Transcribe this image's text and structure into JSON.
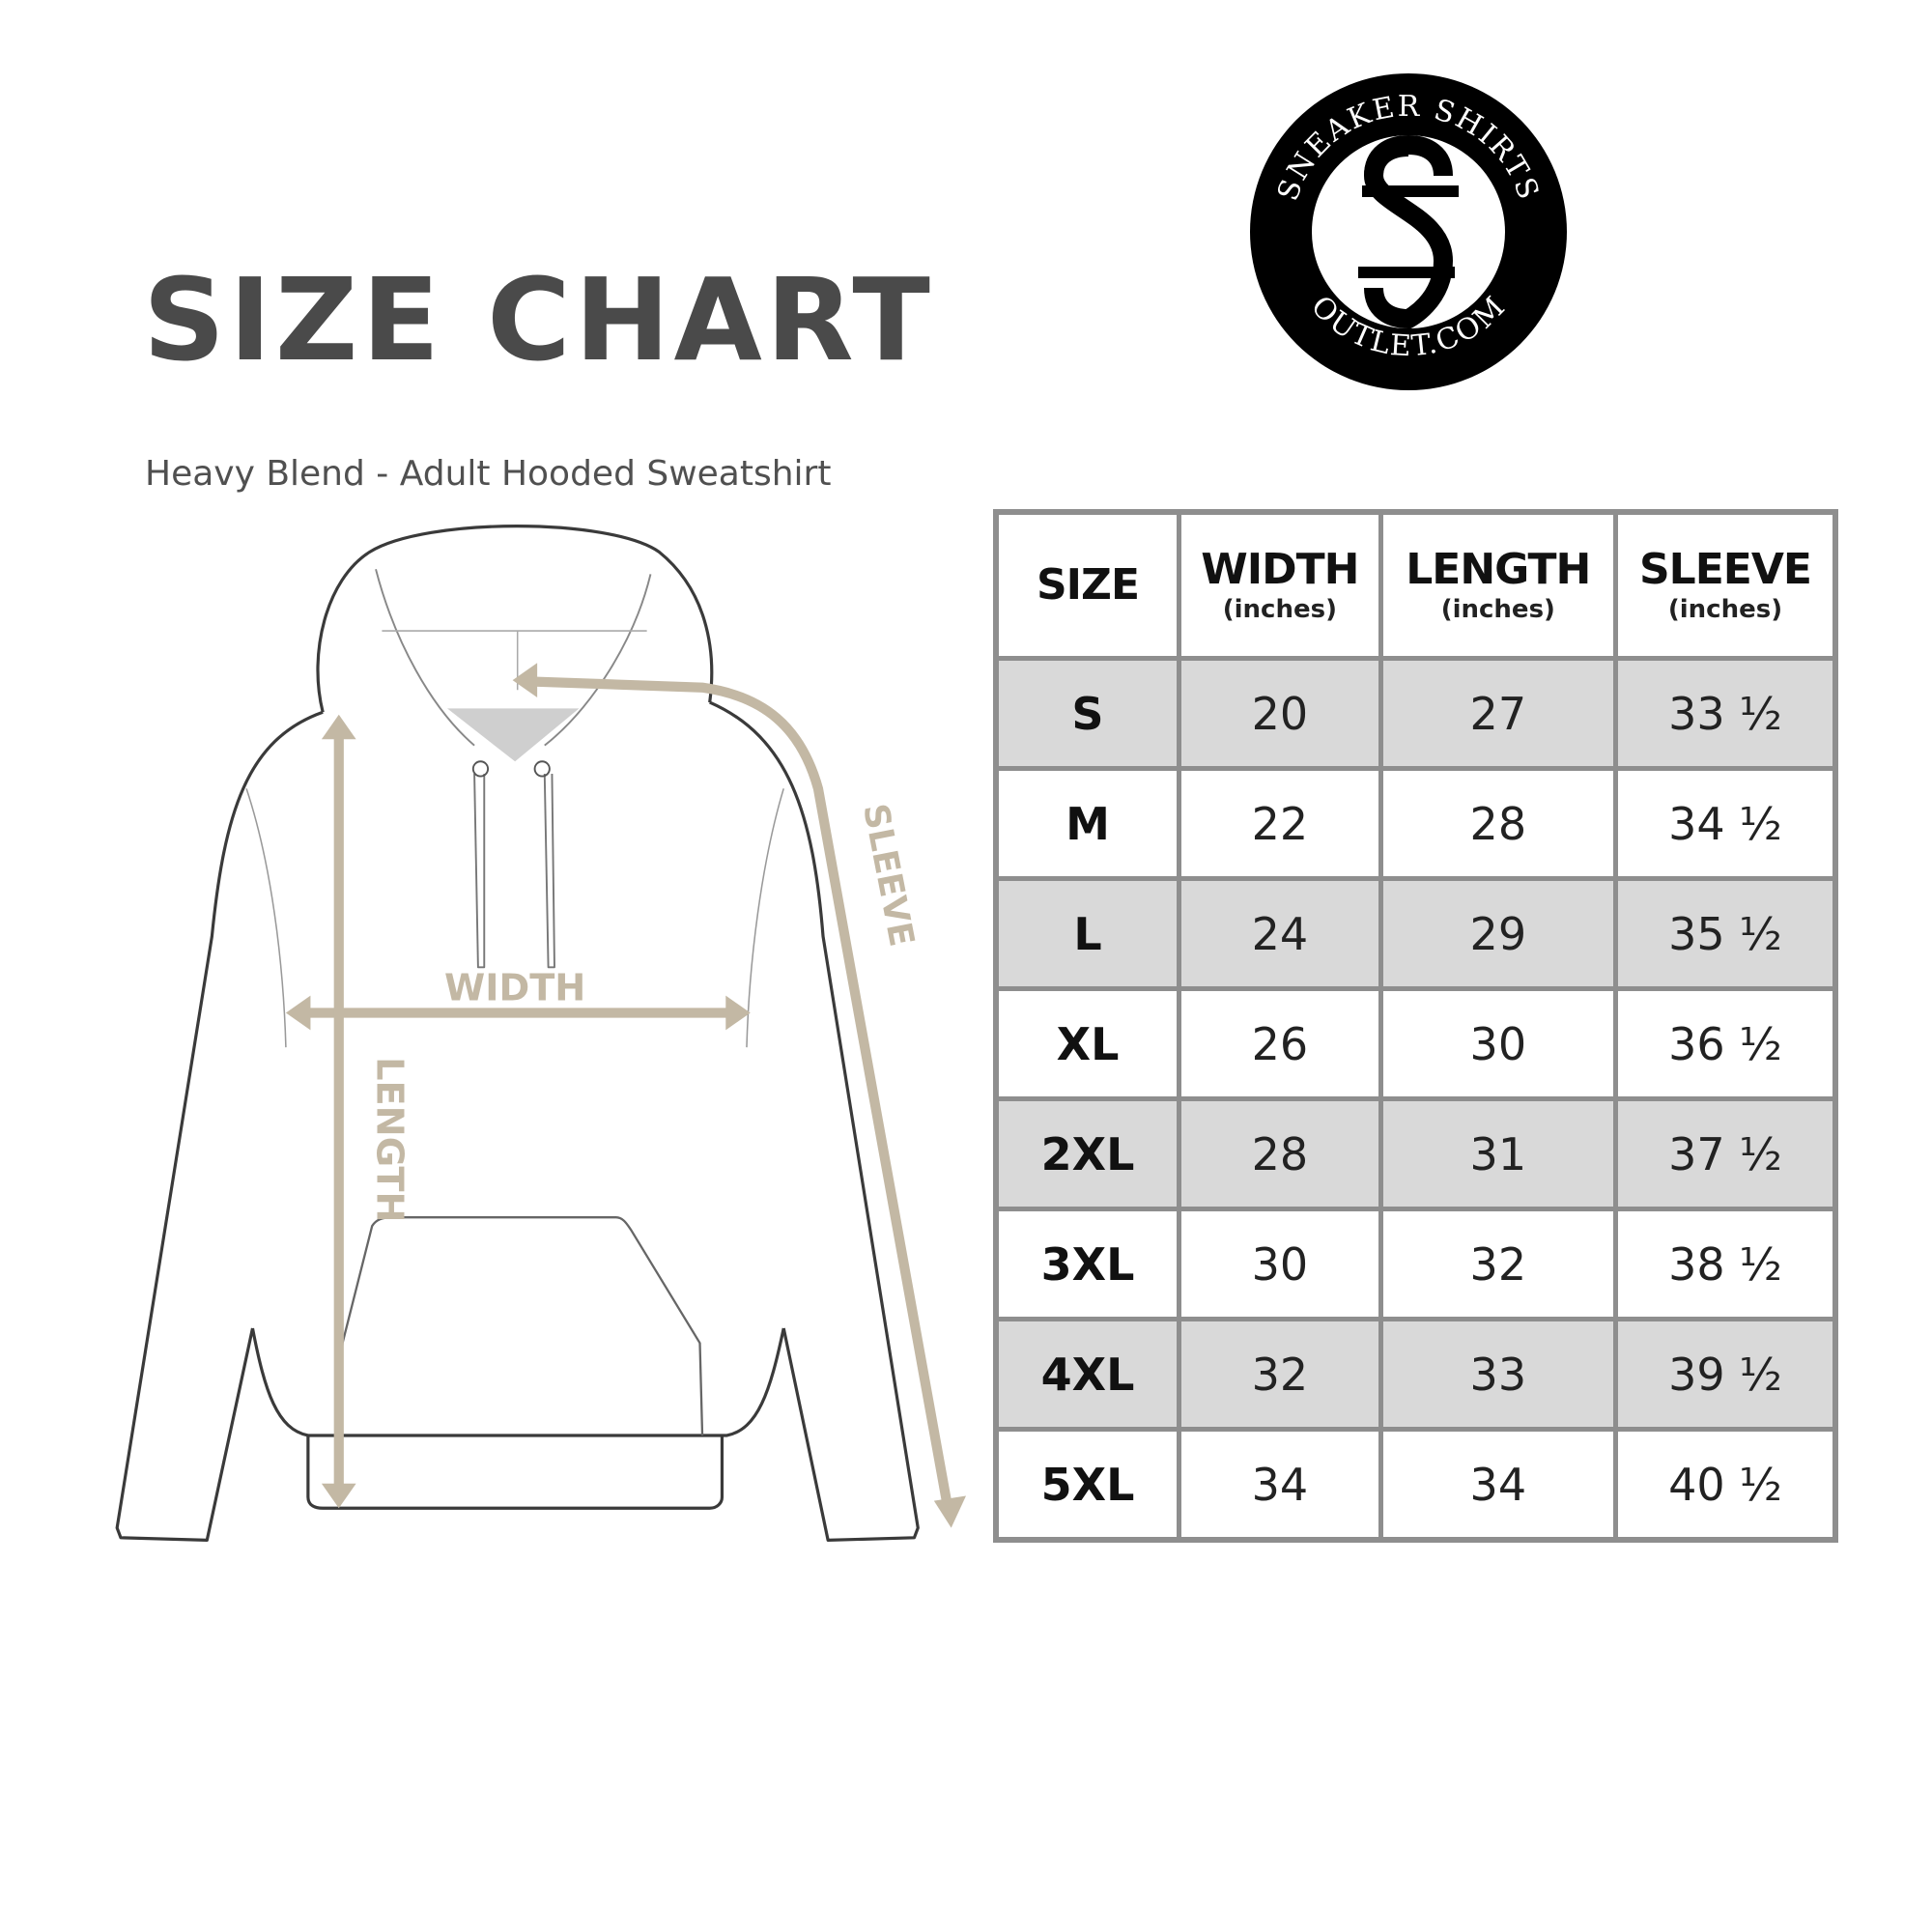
{
  "header": {
    "title": "SIZE CHART",
    "subtitle": "Heavy Blend - Adult Hooded Sweatshirt"
  },
  "logo": {
    "top_text": "SNEAKER SHIRTS",
    "bottom_text": "OUTLET.COM",
    "monogram": "SS"
  },
  "diagram": {
    "width_label": "WIDTH",
    "length_label": "LENGTH",
    "sleeve_label": "SLEEVE",
    "arrow_color": "#c3b8a4",
    "outline_color": "#3a3a3a"
  },
  "table": {
    "columns": [
      {
        "label": "SIZE",
        "unit": ""
      },
      {
        "label": "WIDTH",
        "unit": "(inches)"
      },
      {
        "label": "LENGTH",
        "unit": "(inches)"
      },
      {
        "label": "SLEEVE",
        "unit": "(inches)"
      }
    ],
    "rows": [
      [
        "S",
        "20",
        "27",
        "33 ½"
      ],
      [
        "M",
        "22",
        "28",
        "34 ½"
      ],
      [
        "L",
        "24",
        "29",
        "35 ½"
      ],
      [
        "XL",
        "26",
        "30",
        "36 ½"
      ],
      [
        "2XL",
        "28",
        "31",
        "37 ½"
      ],
      [
        "3XL",
        "30",
        "32",
        "38 ½"
      ],
      [
        "4XL",
        "32",
        "33",
        "39 ½"
      ],
      [
        "5XL",
        "34",
        "34",
        "40 ½"
      ]
    ],
    "stripe_color": "#d9d9d9",
    "border_color": "#8e8e8e"
  }
}
